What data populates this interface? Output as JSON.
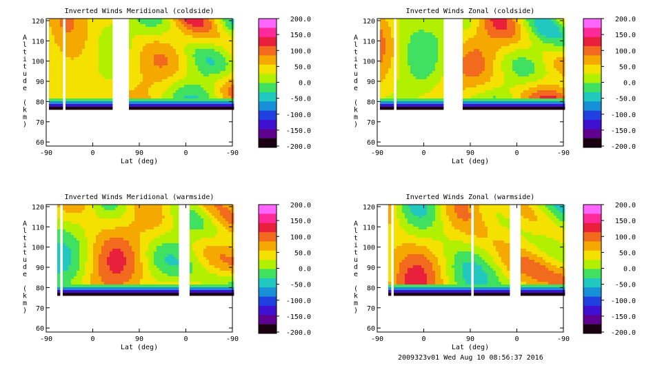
{
  "footer": "2009323v01 Wed Aug 10 08:56:37 2016",
  "colorbar": {
    "labels": [
      "200.0",
      "150.0",
      "100.0",
      "50.0",
      "0.0",
      "-50.0",
      "-100.0",
      "-150.0",
      "-200.0"
    ],
    "colors": [
      "#ff66ff",
      "#ff2a9a",
      "#e8203c",
      "#f26a1e",
      "#f5a800",
      "#f5e100",
      "#b0f000",
      "#40e060",
      "#20c8c0",
      "#1890d8",
      "#2040e0",
      "#4010d0",
      "#600090",
      "#1a0010"
    ]
  },
  "chart_data": [
    {
      "type": "contour",
      "title": "Inverted Winds Meridional (coldside)",
      "xlabel": "Lat (deg)",
      "ylabel": "Altitude (km)",
      "xticks": [
        "-90",
        "0",
        "90",
        "0",
        "-90"
      ],
      "yticks": [
        "60",
        "70",
        "80",
        "90",
        "100",
        "110",
        "120"
      ],
      "ylim": [
        58,
        121
      ],
      "clim": [
        -200,
        200
      ],
      "masks": [
        [
          -93,
          -85
        ],
        [
          -60,
          -55
        ],
        [
          35,
          65
        ]
      ]
    },
    {
      "type": "contour",
      "title": "Inverted Winds Zonal (coldside)",
      "xlabel": "Lat (deg)",
      "ylabel": "Altitude (km)",
      "xticks": [
        "-90",
        "0",
        "90",
        "0",
        "-90"
      ],
      "yticks": [
        "60",
        "70",
        "80",
        "90",
        "100",
        "110",
        "120"
      ],
      "ylim": [
        58,
        121
      ],
      "clim": [
        -200,
        200
      ],
      "masks": [
        [
          -93,
          -85
        ],
        [
          -60,
          -55
        ],
        [
          35,
          70
        ]
      ]
    },
    {
      "type": "contour",
      "title": "Inverted Winds Meridional (warmside)",
      "xlabel": "Lat (deg)",
      "ylabel": "Altitude (km)",
      "xticks": [
        "-90",
        "0",
        "90",
        "0",
        "-90"
      ],
      "yticks": [
        "60",
        "70",
        "80",
        "90",
        "100",
        "110",
        "120"
      ],
      "ylim": [
        58,
        121
      ],
      "clim": [
        -200,
        200
      ],
      "masks": [
        [
          -93,
          -73
        ],
        [
          -65,
          -63
        ],
        [
          88,
          90
        ],
        [
          165,
          185
        ]
      ]
    },
    {
      "type": "contour",
      "title": "Inverted Winds Zonal (warmside)",
      "xlabel": "Lat (deg)",
      "ylabel": "Altitude (km)",
      "xticks": [
        "-90",
        "0",
        "90",
        "0",
        "-90"
      ],
      "yticks": [
        "60",
        "70",
        "80",
        "90",
        "100",
        "110",
        "120"
      ],
      "ylim": [
        58,
        121
      ],
      "clim": [
        -200,
        200
      ],
      "masks": [
        [
          -93,
          -72
        ],
        [
          -64,
          -60
        ],
        [
          90,
          92
        ],
        [
          165,
          185
        ]
      ]
    }
  ]
}
